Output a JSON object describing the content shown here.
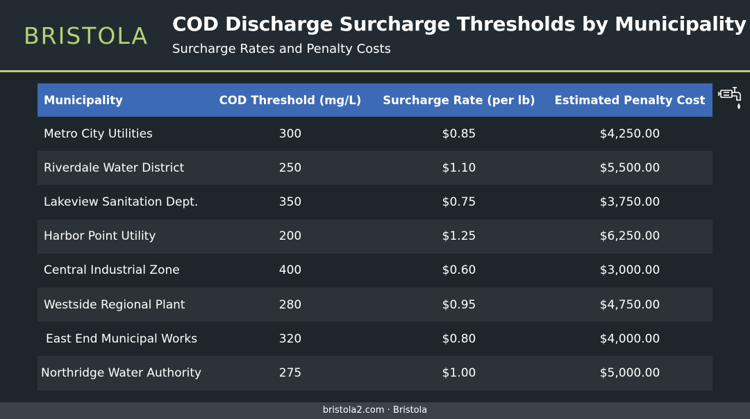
{
  "brand": {
    "logo_text": "BRISTOLA"
  },
  "header": {
    "title": "COD Discharge Surcharge Thresholds by Municipality",
    "subtitle": "Surcharge Rates and Penalty Costs"
  },
  "table": {
    "columns": [
      "Municipality",
      "COD Threshold (mg/L)",
      "Surcharge Rate (per lb)",
      "Estimated Penalty Cost"
    ],
    "rows": [
      [
        "Metro City Utilities",
        "300",
        "$0.85",
        "$4,250.00"
      ],
      [
        "Riverdale Water District",
        "250",
        "$1.10",
        "$5,500.00"
      ],
      [
        "Lakeview Sanitation Dept.",
        "350",
        "$0.75",
        "$3,750.00"
      ],
      [
        "Harbor Point Utility",
        "200",
        "$1.25",
        "$6,250.00"
      ],
      [
        "Central Industrial Zone",
        "400",
        "$0.60",
        "$3,000.00"
      ],
      [
        "Westside Regional Plant",
        "280",
        "$0.95",
        "$4,750.00"
      ],
      [
        " East End Municipal Works",
        "320",
        "$0.80",
        "$4,000.00"
      ],
      [
        "Northridge Water Authority",
        "275",
        "$1.00",
        "$5,000.00"
      ]
    ]
  },
  "footer": {
    "text": "bristola2.com · Bristola"
  },
  "icons": {
    "side": "water-pipe-faucet-icon"
  },
  "colors": {
    "accent": "#b4d277",
    "header_row": "#3d6ab5",
    "background": "#1e262c"
  }
}
